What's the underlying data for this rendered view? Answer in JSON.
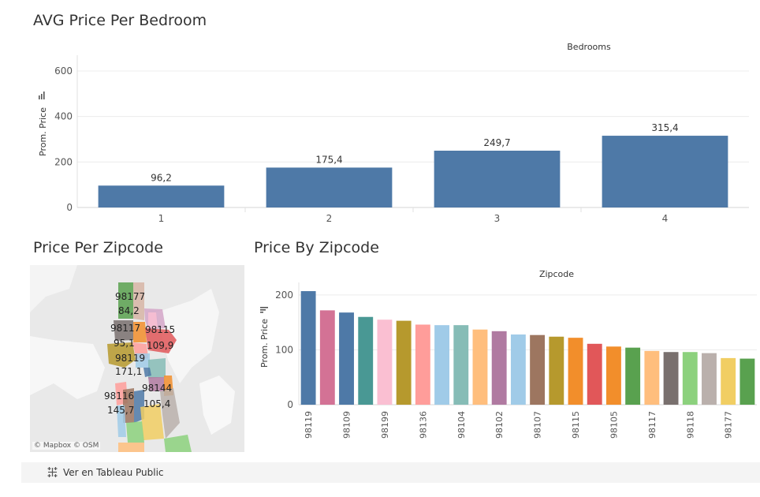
{
  "bedroom_chart": {
    "title": "AVG Price Per Bedroom",
    "header": "Bedrooms",
    "ylabel": "Prom. Price",
    "sort_icon": "sort-bars-icon"
  },
  "map": {
    "title": "Price Per Zipcode",
    "attribution": "© Mapbox  © OSM",
    "labels": [
      {
        "text": "98177"
      },
      {
        "text": "84,2"
      },
      {
        "text": "98117"
      },
      {
        "text": "98115"
      },
      {
        "text": "95,1"
      },
      {
        "text": "109,9"
      },
      {
        "text": "98119"
      },
      {
        "text": "171,1"
      },
      {
        "text": "98144"
      },
      {
        "text": "98116"
      },
      {
        "text": "105,4"
      },
      {
        "text": "145,7"
      }
    ]
  },
  "zip_chart": {
    "title": "Price By Zipcode",
    "header": "Zipcode",
    "ylabel": "Prom. Price",
    "sort_icon": "sort-lines-icon"
  },
  "footer": {
    "link_label": "Ver en Tableau Public",
    "icon": "tableau-logo-icon"
  },
  "chart_data": [
    {
      "type": "bar",
      "title": "AVG Price Per Bedroom",
      "header": "Bedrooms",
      "ylabel": "Prom. Price",
      "categories": [
        "1",
        "2",
        "3",
        "4"
      ],
      "values": [
        96.2,
        175.4,
        249.7,
        315.4
      ],
      "value_labels": [
        "96,2",
        "175,4",
        "249,7",
        "315,4"
      ],
      "ylim": [
        0,
        600
      ],
      "yticks": [
        0,
        200,
        400,
        600
      ],
      "grid": true,
      "color": "#4e79a7"
    },
    {
      "type": "bar",
      "title": "Price By Zipcode",
      "header": "Zipcode",
      "ylabel": "Prom. Price",
      "categories": [
        "98119",
        "",
        "98109",
        "",
        "98199",
        "",
        "98136",
        "",
        "98104",
        "",
        "98102",
        "",
        "98107",
        "",
        "98115",
        "",
        "98105",
        "",
        "98117",
        "",
        "98118",
        "",
        "98177",
        ""
      ],
      "values": [
        207,
        172,
        168,
        160,
        155,
        153,
        146,
        145,
        145,
        137,
        134,
        128,
        127,
        124,
        122,
        111,
        106,
        104,
        98,
        96,
        96,
        94,
        85,
        84
      ],
      "colors": [
        "#4e79a7",
        "#d37295",
        "#4e79a7",
        "#499894",
        "#fabfd2",
        "#b6992d",
        "#ff9d9a",
        "#a0cbe8",
        "#86bcb6",
        "#ffbe7d",
        "#b07aa1",
        "#a0cbe8",
        "#9d7660",
        "#b6992d",
        "#f28e2b",
        "#e15759",
        "#f28e2b",
        "#59a14f",
        "#ffbe7d",
        "#79706e",
        "#8cd17d",
        "#bab0ac",
        "#f1ce63",
        "#59a14f"
      ],
      "ylim": [
        0,
        220
      ],
      "yticks": [
        0,
        100,
        200
      ],
      "grid": true
    }
  ]
}
